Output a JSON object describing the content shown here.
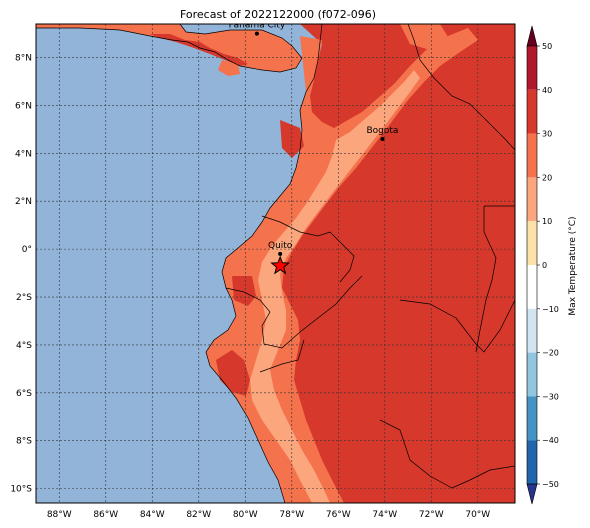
{
  "title": "Forecast of 2022122000 (f072-096)",
  "map": {
    "ocean_color": "#91b4d8",
    "lon_ticks": [
      {
        "label": "88°W",
        "lon": -88
      },
      {
        "label": "86°W",
        "lon": -86
      },
      {
        "label": "84°W",
        "lon": -84
      },
      {
        "label": "82°W",
        "lon": -82
      },
      {
        "label": "80°W",
        "lon": -80
      },
      {
        "label": "78°W",
        "lon": -78
      },
      {
        "label": "76°W",
        "lon": -76
      },
      {
        "label": "74°W",
        "lon": -74
      },
      {
        "label": "72°W",
        "lon": -72
      },
      {
        "label": "70°W",
        "lon": -70
      }
    ],
    "lat_ticks": [
      {
        "label": "8°N",
        "lat": 8
      },
      {
        "label": "6°N",
        "lat": 6
      },
      {
        "label": "4°N",
        "lat": 4
      },
      {
        "label": "2°N",
        "lat": 2
      },
      {
        "label": "0°",
        "lat": 0
      },
      {
        "label": "2°S",
        "lat": -2
      },
      {
        "label": "4°S",
        "lat": -4
      },
      {
        "label": "6°S",
        "lat": -6
      },
      {
        "label": "8°S",
        "lat": -8
      },
      {
        "label": "10°S",
        "lat": -10
      }
    ],
    "cities": [
      {
        "name": "Panama City",
        "lon": -79.5,
        "lat": 9.0
      },
      {
        "name": "Bogota",
        "lon": -74.1,
        "lat": 4.6
      },
      {
        "name": "Quito",
        "lon": -78.5,
        "lat": -0.2
      }
    ],
    "star": {
      "lon": -78.5,
      "lat": -0.7,
      "color": "#ff0000"
    }
  },
  "colorbar": {
    "label": "Max Temperature (°C)",
    "ticks": [
      "50",
      "40",
      "30",
      "20",
      "10",
      "0",
      "−10",
      "−20",
      "−30",
      "−40",
      "−50"
    ],
    "colors": [
      "#67001f",
      "#b2182b",
      "#d6382b",
      "#f4734d",
      "#fca67e",
      "#fde2a8",
      "#ffffff",
      "#d1e5f0",
      "#92c5de",
      "#4393c3",
      "#2166ac",
      "#26358f"
    ]
  }
}
